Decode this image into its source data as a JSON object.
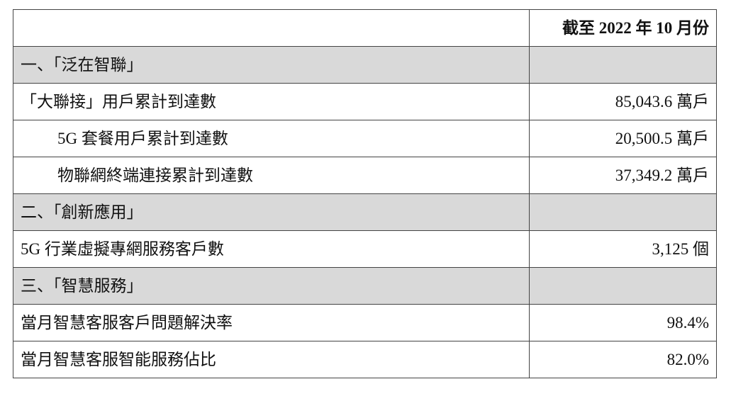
{
  "header": {
    "label_col": "",
    "value_col": "截至 2022 年 10 月份"
  },
  "rows": [
    {
      "type": "section",
      "label": "一、「泛在智聯」",
      "value": ""
    },
    {
      "type": "item",
      "label": "「大聯接」用戶累計到達數",
      "value": "85,043.6 萬戶"
    },
    {
      "type": "subitem",
      "label": "5G 套餐用戶累計到達數",
      "value": "20,500.5 萬戶"
    },
    {
      "type": "subitem",
      "label": "物聯網終端連接累計到達數",
      "value": "37,349.2 萬戶"
    },
    {
      "type": "section",
      "label": "二、「創新應用」",
      "value": ""
    },
    {
      "type": "item",
      "label": "5G 行業虛擬專網服務客戶數",
      "value": "3,125 個"
    },
    {
      "type": "section",
      "label": "三、「智慧服務」",
      "value": ""
    },
    {
      "type": "item",
      "label": "當月智慧客服客戶問題解決率",
      "value": "98.4%"
    },
    {
      "type": "item",
      "label": "當月智慧客服智能服務佔比",
      "value": "82.0%"
    }
  ],
  "colors": {
    "section_bg": "#d9d9d9",
    "border": "#444444"
  }
}
